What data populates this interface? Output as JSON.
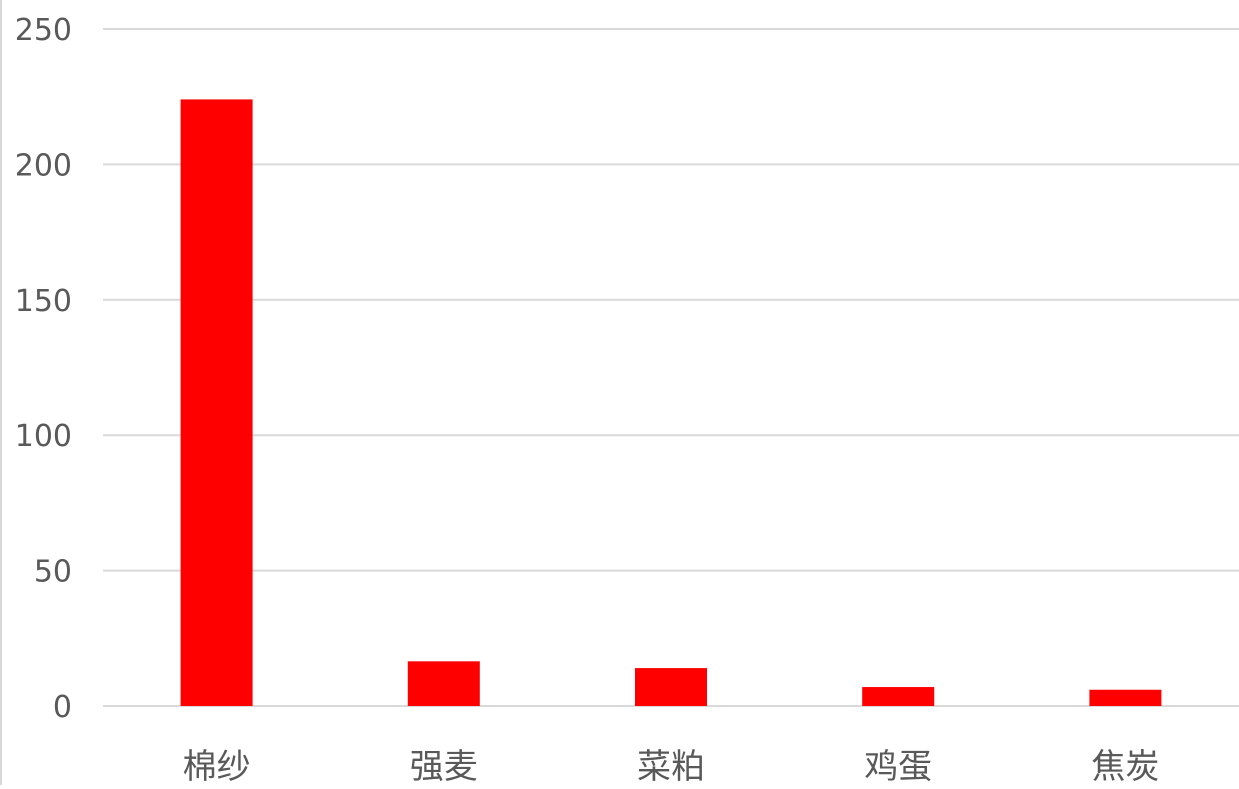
{
  "chart_data": {
    "type": "bar",
    "categories": [
      "棉纱",
      "强麦",
      "菜粕",
      "鸡蛋",
      "焦炭"
    ],
    "values": [
      224,
      16.5,
      14,
      7,
      6
    ],
    "y_ticks": [
      0,
      50,
      100,
      150,
      200,
      250
    ],
    "ylim": [
      0,
      250
    ],
    "grid": true,
    "colors": {
      "bar": "#ff0000",
      "grid": "#d9d9d9",
      "text": "#595959"
    }
  }
}
